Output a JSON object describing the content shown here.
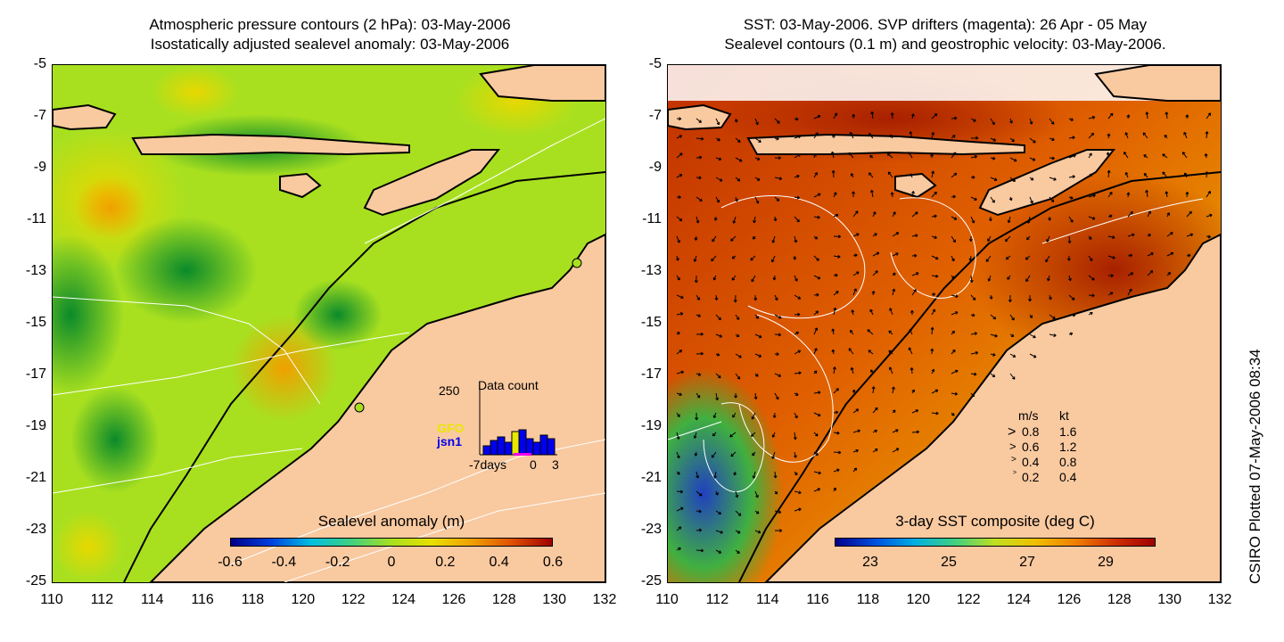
{
  "left_panel": {
    "title_line1": "Atmospheric pressure contours (2 hPa): 03-May-2006",
    "title_line2": "Isostatically adjusted sealevel anomaly: 03-May-2006",
    "yticks": [
      "-5",
      "-7",
      "-9",
      "-11",
      "-13",
      "-15",
      "-17",
      "-19",
      "-21",
      "-23",
      "-25"
    ],
    "xticks": [
      "110",
      "112",
      "114",
      "116",
      "118",
      "120",
      "122",
      "124",
      "126",
      "128",
      "130",
      "132"
    ],
    "colorbar": {
      "title": "Sealevel anomaly (m)",
      "ticks": [
        "-0.6",
        "-0.4",
        "-0.2",
        "0",
        "0.2",
        "0.4",
        "0.6"
      ]
    },
    "inset": {
      "title": "Data count",
      "ymax": "250",
      "legend_gfo": "GFO",
      "legend_jsn1": "jsn1",
      "xlabel_left": "-7days",
      "xlabel_mid": "0",
      "xlabel_right": "3"
    }
  },
  "right_panel": {
    "title_line1": "SST: 03-May-2006. SVP drifters (magenta): 26 Apr - 05 May",
    "title_line2": "Sealevel contours (0.1 m) and geostrophic velocity: 03-May-2006.",
    "yticks": [
      "-5",
      "-7",
      "-9",
      "-11",
      "-13",
      "-15",
      "-17",
      "-19",
      "-21",
      "-23",
      "-25"
    ],
    "xticks": [
      "110",
      "112",
      "114",
      "116",
      "118",
      "120",
      "122",
      "124",
      "126",
      "128",
      "130",
      "132"
    ],
    "colorbar": {
      "title": "3-day SST composite (deg C)",
      "ticks": [
        "23",
        "25",
        "27",
        "29"
      ]
    },
    "vector_legend": {
      "header_ms": "m/s",
      "header_kt": "kt",
      "rows": [
        {
          "ms": "0.8",
          "kt": "1.6"
        },
        {
          "ms": "0.6",
          "kt": "1.2"
        },
        {
          "ms": "0.4",
          "kt": "0.8"
        },
        {
          "ms": "0.2",
          "kt": "0.4"
        }
      ]
    }
  },
  "credit": "CSIRO Plotted 07-May-2006 08:34",
  "colors": {
    "land": "#f9c9a0",
    "sla_low": "#0a8a2a",
    "sla_mid": "#a8e020",
    "sla_high": "#f0a000",
    "sst_warm": "#b82800",
    "sst_cool": "#40b040",
    "gfo": "#e8e800",
    "jsn1": "#0000ee"
  }
}
